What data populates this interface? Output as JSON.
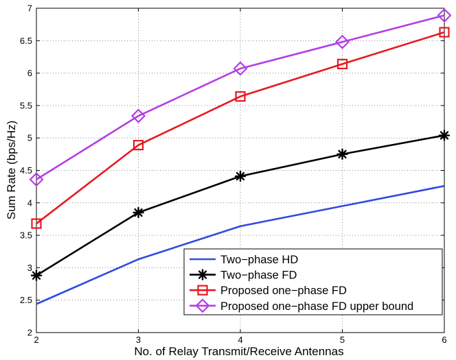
{
  "chart_data": {
    "type": "line",
    "title": "",
    "xlabel": "No. of Relay Transmit/Receive Antennas",
    "ylabel": "Sum Rate (bps/Hz)",
    "x": [
      2,
      3,
      4,
      5,
      6
    ],
    "xlim": [
      2,
      6
    ],
    "ylim": [
      2,
      7
    ],
    "xticks": [
      2,
      3,
      4,
      5,
      6
    ],
    "yticks": [
      2,
      2.5,
      3,
      3.5,
      4,
      4.5,
      5,
      5.5,
      6,
      6.5,
      7
    ],
    "xtick_labels": [
      "2",
      "3",
      "4",
      "5",
      "6"
    ],
    "ytick_labels": [
      "2",
      "2.5",
      "3",
      "3.5",
      "4",
      "4.5",
      "5",
      "5.5",
      "6",
      "6.5",
      "7"
    ],
    "grid": true,
    "legend_position": "bottom-right",
    "series": [
      {
        "name": "Two−phase HD",
        "values": [
          2.44,
          3.13,
          3.64,
          3.95,
          4.26
        ],
        "color": "#2f4be0",
        "marker": "none"
      },
      {
        "name": "Two−phase FD",
        "values": [
          2.88,
          3.85,
          4.41,
          4.75,
          5.04
        ],
        "color": "#000000",
        "marker": "asterisk"
      },
      {
        "name": "Proposed one−phase FD",
        "values": [
          3.68,
          4.89,
          5.64,
          6.14,
          6.63
        ],
        "color": "#e8171f",
        "marker": "square"
      },
      {
        "name": "Proposed one−phase FD upper bound",
        "values": [
          4.36,
          5.34,
          6.07,
          6.48,
          6.89
        ],
        "color": "#b43ee6",
        "marker": "diamond"
      }
    ]
  }
}
